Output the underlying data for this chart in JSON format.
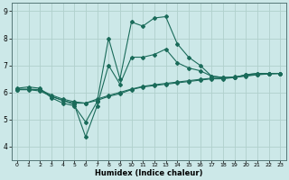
{
  "xlabel": "Humidex (Indice chaleur)",
  "bg_color": "#cce8e8",
  "grid_color": "#b0d0cc",
  "line_color": "#1a6b5a",
  "xlim": [
    -0.5,
    23.5
  ],
  "ylim": [
    3.5,
    9.3
  ],
  "xticks": [
    0,
    1,
    2,
    3,
    4,
    5,
    6,
    7,
    8,
    9,
    10,
    11,
    12,
    13,
    14,
    15,
    16,
    17,
    18,
    19,
    20,
    21,
    22,
    23
  ],
  "yticks": [
    4,
    5,
    6,
    7,
    8,
    9
  ],
  "series": {
    "max_x": [
      0,
      1,
      2,
      3,
      4,
      5,
      6,
      7,
      8,
      9,
      10,
      11,
      12,
      13,
      14,
      15,
      16,
      17,
      18,
      19,
      20,
      21,
      22,
      23
    ],
    "max_y": [
      6.15,
      6.2,
      6.15,
      5.8,
      5.6,
      5.5,
      4.9,
      5.65,
      8.0,
      6.5,
      8.6,
      8.45,
      8.75,
      8.8,
      7.8,
      7.3,
      7.0,
      6.6,
      6.55,
      6.55,
      6.65,
      6.7,
      6.7,
      6.7
    ],
    "mean_x": [
      0,
      1,
      2,
      3,
      4,
      5,
      6,
      7,
      8,
      9,
      10,
      11,
      12,
      13,
      14,
      15,
      16,
      17,
      18,
      19,
      20,
      21,
      22,
      23
    ],
    "mean_y": [
      6.1,
      6.1,
      6.05,
      5.85,
      5.7,
      5.6,
      5.6,
      5.7,
      5.85,
      5.95,
      6.1,
      6.2,
      6.25,
      6.3,
      6.35,
      6.4,
      6.45,
      6.5,
      6.5,
      6.55,
      6.6,
      6.65,
      6.68,
      6.7
    ],
    "q75_x": [
      0,
      1,
      2,
      3,
      4,
      5,
      6,
      7,
      8,
      9,
      10,
      11,
      12,
      13,
      14,
      15,
      16,
      17,
      18,
      19,
      20,
      21,
      22,
      23
    ],
    "q75_y": [
      6.12,
      6.12,
      6.1,
      5.9,
      5.75,
      5.65,
      5.6,
      5.75,
      5.88,
      6.0,
      6.12,
      6.22,
      6.28,
      6.33,
      6.38,
      6.43,
      6.48,
      6.52,
      6.53,
      6.57,
      6.62,
      6.66,
      6.69,
      6.7
    ],
    "med_x": [
      0,
      2,
      3,
      5,
      6,
      7,
      8,
      9,
      10,
      11,
      12,
      13,
      14,
      15,
      16,
      17,
      18,
      19,
      20,
      21,
      22,
      23
    ],
    "med_y": [
      6.1,
      6.1,
      5.85,
      5.55,
      4.35,
      5.5,
      7.0,
      6.3,
      7.3,
      7.3,
      7.4,
      7.6,
      7.1,
      6.9,
      6.8,
      6.6,
      6.55,
      6.55,
      6.65,
      6.7,
      6.7,
      6.7
    ]
  }
}
